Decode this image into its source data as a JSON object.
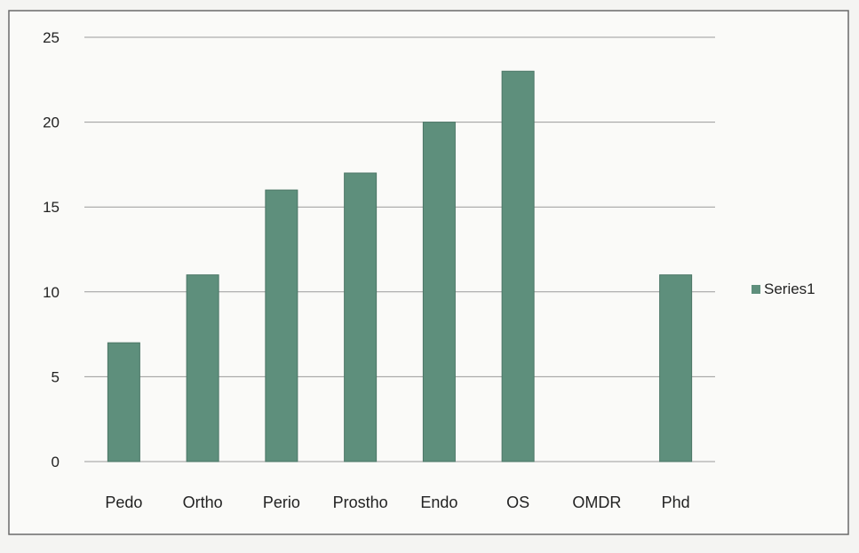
{
  "chart_data": {
    "type": "bar",
    "categories": [
      "Pedo",
      "Ortho",
      "Perio",
      "Prostho",
      "Endo",
      "OS",
      "OMDR",
      "Phd"
    ],
    "series": [
      {
        "name": "Series1",
        "values": [
          7,
          11,
          16,
          17,
          20,
          23,
          0,
          11
        ]
      }
    ],
    "ylim": [
      0,
      25
    ],
    "yticks": [
      0,
      5,
      10,
      15,
      20,
      25
    ],
    "grid": true,
    "legend_position": "right",
    "colors": {
      "bar": "#5e8f7c",
      "grid": "#9a9a9a",
      "text": "#222222"
    }
  }
}
